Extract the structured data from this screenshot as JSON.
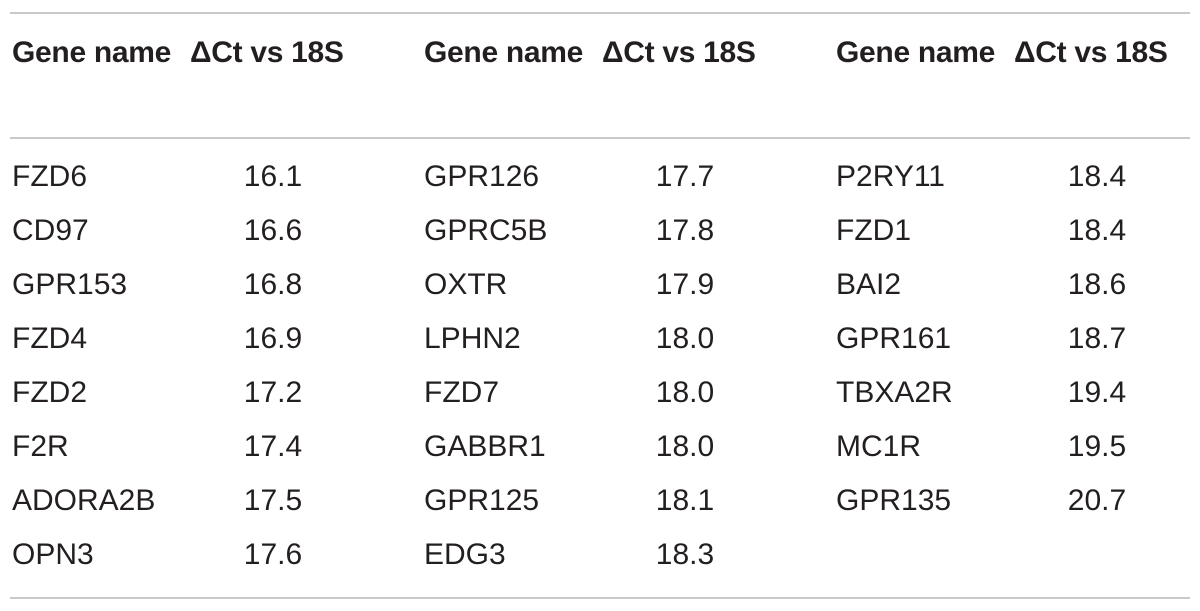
{
  "table": {
    "headers": {
      "gene": "Gene name",
      "dct": "ΔCt vs 18S"
    },
    "columns": [
      {
        "rows": [
          {
            "gene": "FZD6",
            "value": "16.1"
          },
          {
            "gene": "CD97",
            "value": "16.6"
          },
          {
            "gene": "GPR153",
            "value": "16.8"
          },
          {
            "gene": "FZD4",
            "value": "16.9"
          },
          {
            "gene": "FZD2",
            "value": "17.2"
          },
          {
            "gene": "F2R",
            "value": "17.4"
          },
          {
            "gene": "ADORA2B",
            "value": "17.5"
          },
          {
            "gene": "OPN3",
            "value": "17.6"
          }
        ]
      },
      {
        "rows": [
          {
            "gene": "GPR126",
            "value": "17.7"
          },
          {
            "gene": "GPRC5B",
            "value": "17.8"
          },
          {
            "gene": "OXTR",
            "value": "17.9"
          },
          {
            "gene": "LPHN2",
            "value": "18.0"
          },
          {
            "gene": "FZD7",
            "value": "18.0"
          },
          {
            "gene": "GABBR1",
            "value": "18.0"
          },
          {
            "gene": "GPR125",
            "value": "18.1"
          },
          {
            "gene": "EDG3",
            "value": "18.3"
          }
        ]
      },
      {
        "rows": [
          {
            "gene": "P2RY11",
            "value": "18.4"
          },
          {
            "gene": "FZD1",
            "value": "18.4"
          },
          {
            "gene": "BAI2",
            "value": "18.6"
          },
          {
            "gene": "GPR161",
            "value": "18.7"
          },
          {
            "gene": "TBXA2R",
            "value": "19.4"
          },
          {
            "gene": "MC1R",
            "value": "19.5"
          },
          {
            "gene": "GPR135",
            "value": "20.7"
          }
        ]
      }
    ]
  }
}
